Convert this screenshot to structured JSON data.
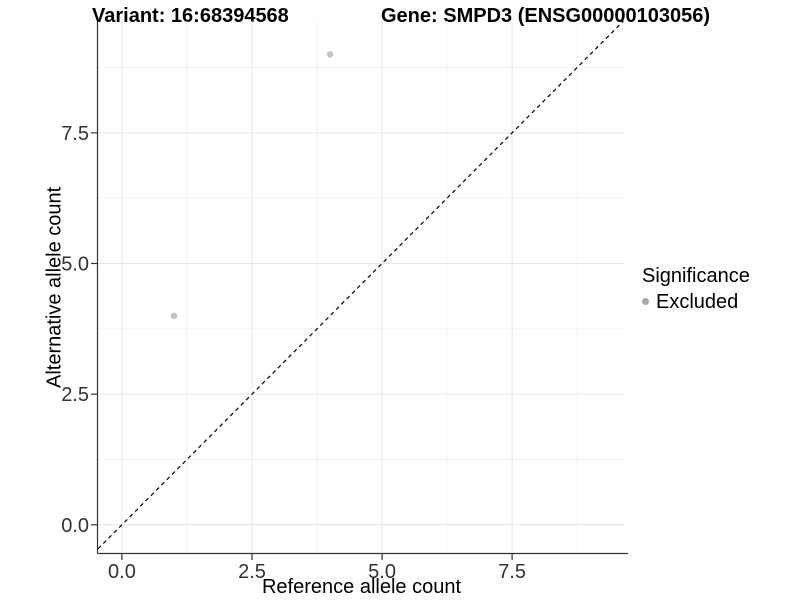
{
  "chart_data": {
    "type": "scatter",
    "titles": [
      "Variant: 16:68394568",
      "Gene: SMPD3 (ENSG00000103056)"
    ],
    "xlabel": "Reference allele count",
    "ylabel": "Alternative allele count",
    "x_ticks": [
      {
        "v": 0,
        "label": "0.0"
      },
      {
        "v": 2.5,
        "label": "2.5"
      },
      {
        "v": 5,
        "label": "5.0"
      },
      {
        "v": 7.5,
        "label": "7.5"
      }
    ],
    "y_ticks": [
      {
        "v": 0,
        "label": "0.0"
      },
      {
        "v": 2.5,
        "label": "2.5"
      },
      {
        "v": 5,
        "label": "5.0"
      },
      {
        "v": 7.5,
        "label": "7.5"
      }
    ],
    "minor_ticks": [
      1.25,
      3.75,
      6.25,
      8.75
    ],
    "xlim": [
      -0.46,
      9.67
    ],
    "ylim": [
      -0.54,
      9.64
    ],
    "grid": true,
    "points": [
      {
        "x": 1,
        "y": 4,
        "significance": "Excluded"
      },
      {
        "x": 4,
        "y": 9,
        "significance": "Excluded"
      }
    ],
    "reference_line": {
      "type": "identity",
      "slope": 1,
      "intercept": 0,
      "style": "dashed",
      "color": "#000000"
    },
    "legend": {
      "title": "Significance",
      "position": "right",
      "items": [
        {
          "label": "Excluded",
          "color": "#a8a8a8"
        }
      ]
    },
    "colors": {
      "point": "#c3c3c3",
      "grid_major": "#e7e7e7",
      "grid_minor": "#f2f2f2",
      "axis": "#333333",
      "tick_label": "#333333"
    }
  }
}
